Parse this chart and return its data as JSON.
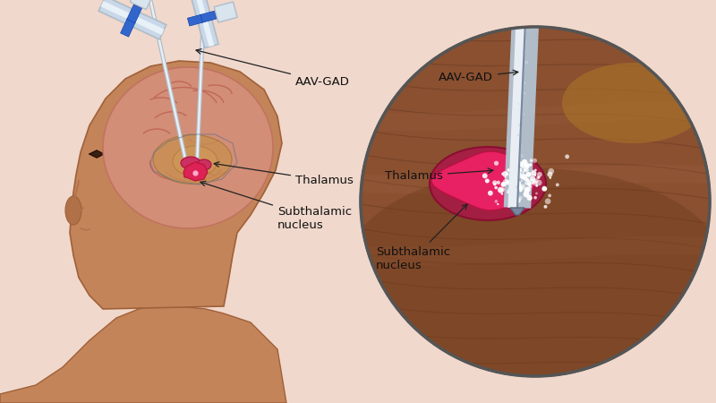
{
  "bg_color": "#f0d8cc",
  "head_skin": "#c4845a",
  "head_skin_dark": "#b07048",
  "head_outline": "#a06038",
  "brain_fill": "#d4907a",
  "brain_outline": "#c07060",
  "brain_fold": "#c06858",
  "deep_struct_fill": "#c89050",
  "deep_struct_outline": "#a07030",
  "thalamus_fill": "#cc3060",
  "thalamus_outline": "#aa1040",
  "stn_fill": "#dd2255",
  "stn_outline": "#bb1035",
  "catheter_outer": "#b0bcc8",
  "catheter_inner": "#e8eef4",
  "catheter_center": "#8090a0",
  "syringe_body": "#c8d8e8",
  "syringe_highlight": "#e8f0f8",
  "syringe_band": "#3366cc",
  "zoom_bg": "#8a5030",
  "zoom_tissue_line": "#6a3820",
  "zoom_tan": "#b07828",
  "zoom_outline": "#555555",
  "nucleus_outer": "#cc3060",
  "nucleus_inner": "#ee2266",
  "spray_color": "#ffffff",
  "label_color": "#111111",
  "arrow_color": "#222222",
  "labels": {
    "aav_gad": "AAV-GAD",
    "thalamus": "Thalamus",
    "subthalamic": "Subthalamic\nnucleus"
  }
}
